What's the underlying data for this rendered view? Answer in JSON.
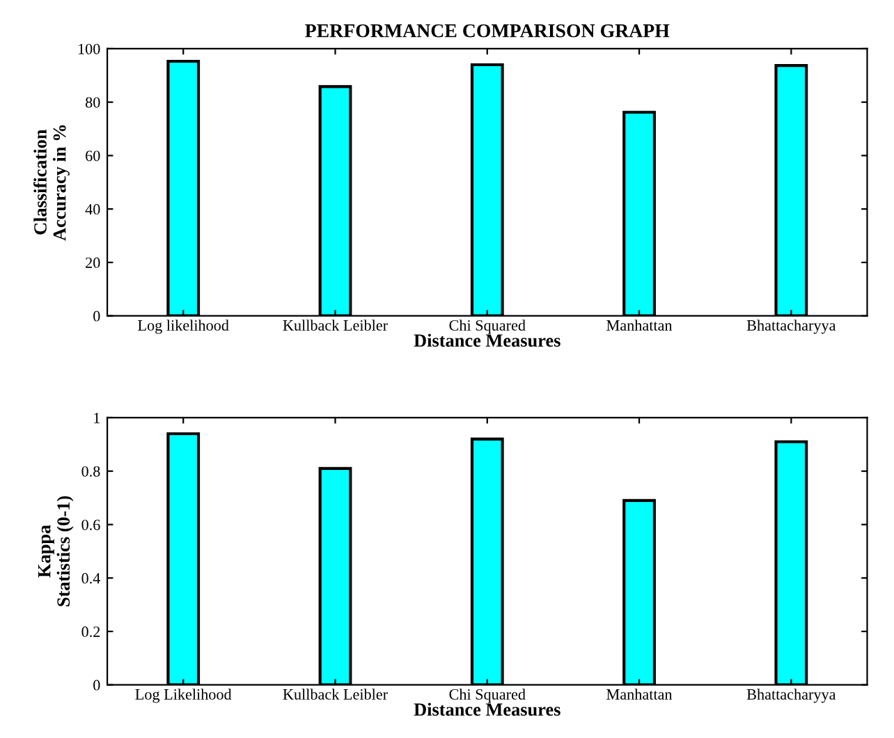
{
  "chart_data": [
    {
      "type": "bar",
      "title": "PERFORMANCE COMPARISON GRAPH",
      "xlabel": "Distance Measures",
      "ylabel": "Classification\nAccuracy in %",
      "categories": [
        "Log likelihood",
        "Kullback Leibler",
        "Chi Squared",
        "Manhattan",
        "Bhattacharyya"
      ],
      "values": [
        95.3,
        85.8,
        94.0,
        76.2,
        93.7
      ],
      "color": "#00ffff",
      "ylim": [
        0,
        100
      ],
      "yticks": [
        0,
        20,
        40,
        60,
        80,
        100
      ],
      "grid": false
    },
    {
      "type": "bar",
      "xlabel": "Distance Measures",
      "ylabel": "Kappa\nStatistics (0-1)",
      "categories": [
        "Log Likelihood",
        "Kullback Leibler",
        "Chi Squared",
        "Manhattan",
        "Bhattacharyya"
      ],
      "values": [
        0.94,
        0.81,
        0.92,
        0.69,
        0.91
      ],
      "color": "#00ffff",
      "ylim": [
        0,
        1
      ],
      "yticks": [
        0,
        0.2,
        0.4,
        0.6,
        0.8,
        1
      ],
      "grid": false
    }
  ]
}
